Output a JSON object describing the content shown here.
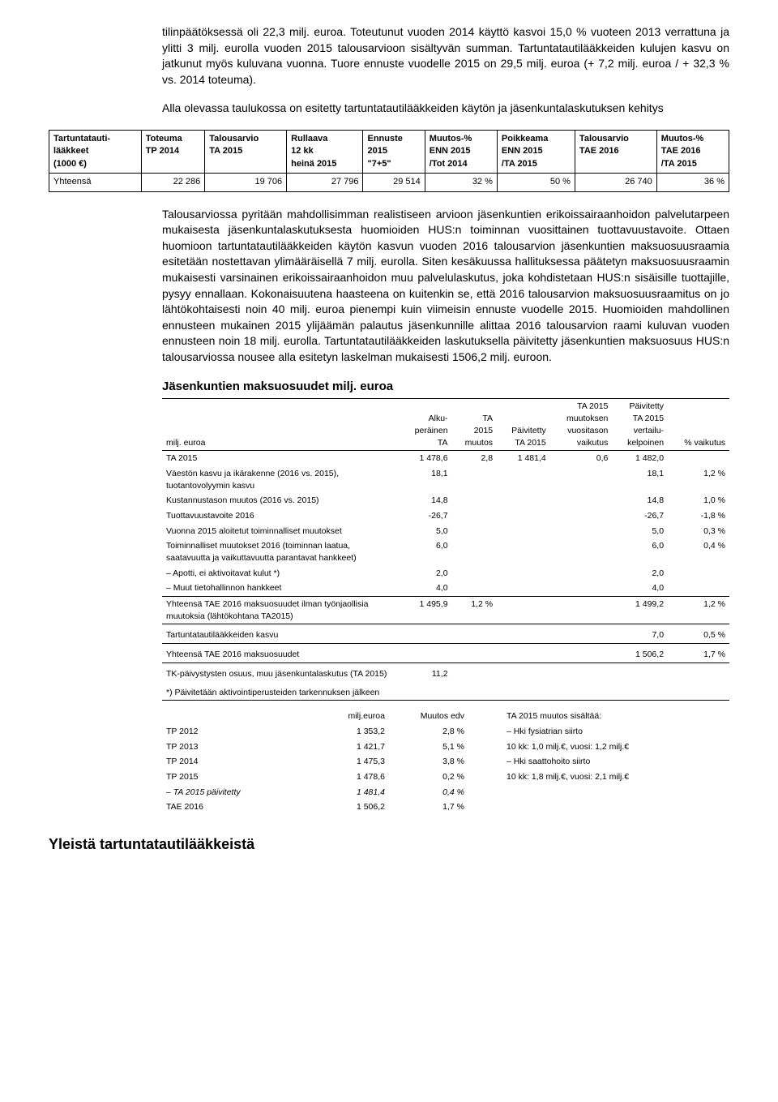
{
  "para1": "tilinpäätöksessä oli 22,3 milj. euroa. Toteutunut vuoden 2014 käyttö kasvoi 15,0 % vuoteen 2013 verrattuna ja ylitti 3 milj. eurolla vuoden 2015 talousarvioon sisältyvän summan. Tartuntatautilääkkeiden kulujen kasvu on jatkunut myös kuluvana vuonna. Tuore ennuste vuodelle 2015 on 29,5 milj. euroa (+ 7,2 milj. euroa / + 32,3 % vs. 2014 toteuma).",
  "para2": "Alla olevassa taulukossa on esitetty tartuntatautilääkkeiden käytön ja jäsenkuntalaskutuksen kehitys",
  "table1": {
    "headers": [
      [
        "Tartuntatauti-",
        "lääkkeet",
        "(1000 €)"
      ],
      [
        "Toteuma",
        "TP 2014",
        ""
      ],
      [
        "Talousarvio",
        "TA 2015",
        ""
      ],
      [
        "Rullaava",
        "12 kk",
        "heinä 2015"
      ],
      [
        "Ennuste",
        "2015",
        "\"7+5\""
      ],
      [
        "Muutos-%",
        "ENN 2015",
        "/Tot 2014"
      ],
      [
        "Poikkeama",
        "ENN 2015",
        "/TA 2015"
      ],
      [
        "Talousarvio",
        "TAE 2016",
        ""
      ],
      [
        "Muutos-%",
        "TAE 2016",
        "/TA 2015"
      ]
    ],
    "row_label": "Yhteensä",
    "row_values": [
      "22 286",
      "19 706",
      "27 796",
      "29 514",
      "32 %",
      "50 %",
      "26 740",
      "36 %"
    ]
  },
  "para3": "Talousarviossa pyritään mahdollisimman realistiseen arvioon jäsenkuntien erikoissairaanhoidon palvelutarpeen mukaisesta jäsenkuntalaskutuksesta huomioiden HUS:n toiminnan vuosittainen tuottavuustavoite. Ottaen huomioon tartuntatautilääkkeiden käytön kasvun vuoden 2016 talousarvion jäsenkuntien maksuosuusraamia esitetään nostettavan ylimääräisellä 7 milj. eurolla. Siten kesäkuussa hallituksessa päätetyn maksuosuusraamin mukaisesti varsinainen erikoissairaanhoidon muu palvelulaskutus, joka kohdistetaan HUS:n sisäisille tuottajille, pysyy ennallaan. Kokonaisuutena haasteena on kuitenkin se, että 2016 talousarvion maksuosuusraamitus on jo lähtökohtaisesti noin 40 milj. euroa pienempi kuin viimeisin ennuste vuodelle 2015. Huomioiden mahdollinen ennusteen mukainen 2015 ylijäämän palautus jäsenkunnille alittaa 2016 talousarvion raami kuluvan vuoden ennusteen noin 18 milj. eurolla. Tartuntatautilääkkeiden laskutuksella päivitetty jäsenkuntien maksuosuus HUS:n talousarviossa nousee alla esitetyn laskelman mukaisesti 1506,2 milj. euroon.",
  "table2": {
    "title": "Jäsenkuntien maksuosuudet  milj. euroa",
    "headcol0": "milj. euroa",
    "headers": [
      [
        "Alku-",
        "peräinen",
        "TA"
      ],
      [
        "TA",
        "2015",
        "muutos"
      ],
      [
        "Päivitetty",
        "TA 2015",
        ""
      ],
      [
        "TA 2015",
        "muutoksen",
        "vuositason",
        "vaikutus"
      ],
      [
        "Päivitetty",
        "TA 2015",
        "vertailu-",
        "kelpoinen"
      ],
      [
        "",
        "",
        "",
        "% vaikutus"
      ]
    ],
    "rows": [
      {
        "label": "TA 2015",
        "c": [
          "1 478,6",
          "2,8",
          "1 481,4",
          "0,6",
          "1 482,0",
          ""
        ]
      },
      {
        "label": "Väestön kasvu ja ikärakenne (2016 vs. 2015), tuotantovolyymin kasvu",
        "c": [
          "18,1",
          "",
          "",
          "",
          "18,1",
          "1,2 %"
        ]
      },
      {
        "label": "Kustannustason muutos (2016 vs. 2015)",
        "c": [
          "14,8",
          "",
          "",
          "",
          "14,8",
          "1,0 %"
        ]
      },
      {
        "label": "Tuottavuustavoite 2016",
        "c": [
          "-26,7",
          "",
          "",
          "",
          "-26,7",
          "-1,8 %"
        ]
      },
      {
        "label": "Vuonna 2015 aloitetut toiminnalliset muutokset",
        "c": [
          "5,0",
          "",
          "",
          "",
          "5,0",
          "0,3 %"
        ]
      },
      {
        "label": "Toiminnalliset muutokset 2016 (toiminnan laatua, saatavuutta ja vaikuttavuutta parantavat hankkeet)",
        "c": [
          "6,0",
          "",
          "",
          "",
          "6,0",
          "0,4 %"
        ]
      },
      {
        "label": "– Apotti, ei aktivoitavat kulut *)",
        "indent": true,
        "c": [
          "2,0",
          "",
          "",
          "",
          "2,0",
          ""
        ]
      },
      {
        "label": "– Muut tietohallinnon hankkeet",
        "indent": true,
        "c": [
          "4,0",
          "",
          "",
          "",
          "4,0",
          ""
        ]
      }
    ],
    "sum1_label": "Yhteensä TAE 2016 maksuosuudet ilman työnjaollisia muutoksia (lähtökohtana TA2015)",
    "sum1_c": [
      "1 495,9",
      "1,2 %",
      "",
      "",
      "1 499,2",
      "1,2 %"
    ],
    "r9_label": "Tartuntatautilääkkeiden kasvu",
    "r9_c": [
      "",
      "",
      "",
      "",
      "7,0",
      "0,5 %"
    ],
    "sum2_label": "Yhteensä TAE 2016 maksuosuudet",
    "sum2_c": [
      "",
      "",
      "",
      "",
      "1 506,2",
      "1,7 %"
    ],
    "r10_label": "TK-päivystysten osuus, muu jäsenkuntalaskutus (TA 2015)",
    "r10_c": [
      "11,2",
      "",
      "",
      "",
      "",
      ""
    ],
    "note": "*) Päivitetään aktivointiperusteiden tarkennuksen jälkeen"
  },
  "table3": {
    "h": [
      "",
      "milj.euroa",
      "Muutos edv",
      "TA 2015 muutos sisältää:"
    ],
    "rows": [
      {
        "l": "TP 2012",
        "v": "1 353,2",
        "m": "2,8 %",
        "n": "– Hki fysiatrian siirto"
      },
      {
        "l": "TP 2013",
        "v": "1 421,7",
        "m": "5,1 %",
        "n": "   10 kk: 1,0 milj.€, vuosi: 1,2 milj.€"
      },
      {
        "l": "TP 2014",
        "v": "1 475,3",
        "m": "3,8 %",
        "n": "– Hki saattohoito siirto"
      },
      {
        "l": "TP 2015",
        "v": "1 478,6",
        "m": "0,2 %",
        "n": "   10 kk: 1,8 milj.€, vuosi: 2,1 milj.€"
      },
      {
        "l": "– TA 2015 päivitetty",
        "italic": true,
        "v": "1 481,4",
        "vitalic": true,
        "m": "0,4 %",
        "mitalic": true,
        "n": ""
      },
      {
        "l": "TAE 2016",
        "v": "1 506,2",
        "m": "1,7 %",
        "n": ""
      }
    ]
  },
  "heading": "Yleistä tartuntatautilääkkeistä"
}
